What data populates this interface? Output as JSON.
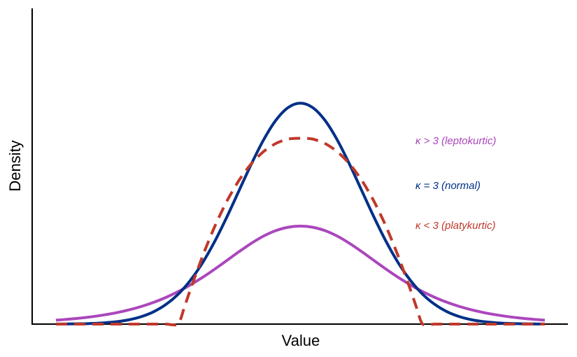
{
  "chart_data": {
    "type": "line",
    "title": "",
    "xlabel": "Value",
    "ylabel": "Density",
    "xlim": [
      -4,
      4
    ],
    "ylim": [
      0,
      0.56
    ],
    "grid": false,
    "legend": "right",
    "series": [
      {
        "name": "κ > 3 (leptokurtic)",
        "color": "#AB47BC",
        "dash": "solid",
        "x": [
          -4.0,
          -3.8,
          -3.6,
          -3.4,
          -3.2,
          -3.0,
          -2.8,
          -2.6,
          -2.4,
          -2.2,
          -2.0,
          -1.8,
          -1.6,
          -1.4,
          -1.2,
          -1.0,
          -0.8,
          -0.6,
          -0.4,
          -0.2,
          0.0,
          0.2,
          0.4,
          0.6,
          0.8,
          1.0,
          1.2,
          1.4,
          1.6,
          1.8,
          2.0,
          2.2,
          2.4,
          2.6,
          2.8,
          3.0,
          3.2,
          3.4,
          3.6,
          3.8,
          4.0
        ],
        "y": [
          0.0071,
          0.0088,
          0.0109,
          0.0135,
          0.0168,
          0.0208,
          0.0258,
          0.0319,
          0.0393,
          0.0482,
          0.0587,
          0.0708,
          0.0844,
          0.0994,
          0.1152,
          0.1311,
          0.1461,
          0.1591,
          0.1689,
          0.1749,
          0.1769,
          0.1749,
          0.1689,
          0.1591,
          0.1461,
          0.1311,
          0.1152,
          0.0994,
          0.0844,
          0.0708,
          0.0587,
          0.0482,
          0.0393,
          0.0319,
          0.0258,
          0.0208,
          0.0168,
          0.0135,
          0.0109,
          0.0088,
          0.0071
        ]
      },
      {
        "name": "κ = 3 (normal)",
        "color": "#003087",
        "dash": "solid",
        "x": [
          -4.0,
          -3.8,
          -3.6,
          -3.4,
          -3.2,
          -3.0,
          -2.8,
          -2.6,
          -2.4,
          -2.2,
          -2.0,
          -1.8,
          -1.6,
          -1.4,
          -1.2,
          -1.0,
          -0.8,
          -0.6,
          -0.4,
          -0.2,
          0.0,
          0.2,
          0.4,
          0.6,
          0.8,
          1.0,
          1.2,
          1.4,
          1.6,
          1.8,
          2.0,
          2.2,
          2.4,
          2.6,
          2.8,
          3.0,
          3.2,
          3.4,
          3.6,
          3.8,
          4.0
        ],
        "y": [
          0.0001,
          0.0003,
          0.0006,
          0.0012,
          0.0024,
          0.0044,
          0.0079,
          0.0136,
          0.0224,
          0.0355,
          0.054,
          0.079,
          0.1109,
          0.1497,
          0.1942,
          0.242,
          0.2897,
          0.3332,
          0.3683,
          0.3911,
          0.399,
          0.3911,
          0.3683,
          0.3332,
          0.2897,
          0.242,
          0.1942,
          0.1497,
          0.1109,
          0.079,
          0.054,
          0.0355,
          0.0224,
          0.0136,
          0.0079,
          0.0044,
          0.0024,
          0.0012,
          0.0006,
          0.0003,
          0.0001
        ]
      },
      {
        "name": "κ < 3 (platykurtic)",
        "color": "#C0392B",
        "dash": "dashed",
        "x": [
          -4.0,
          -3.6,
          -3.2,
          -2.8,
          -2.4,
          -2.2,
          -2.0,
          -1.9,
          -1.8,
          -1.6,
          -1.4,
          -1.2,
          -1.0,
          -0.8,
          -0.6,
          -0.4,
          -0.2,
          0.0,
          0.2,
          0.4,
          0.6,
          0.8,
          1.0,
          1.2,
          1.4,
          1.6,
          1.8,
          1.9,
          2.0,
          2.2,
          2.4,
          2.8,
          3.2,
          3.6,
          4.0
        ],
        "y": [
          0,
          0,
          0,
          0,
          0,
          0,
          0,
          0.03,
          0.0624,
          0.1229,
          0.1768,
          0.2227,
          0.2604,
          0.29,
          0.3118,
          0.3263,
          0.3342,
          0.3357,
          0.3342,
          0.3263,
          0.3118,
          0.29,
          0.2604,
          0.2227,
          0.1768,
          0.1229,
          0.0624,
          0.03,
          0,
          0,
          0,
          0,
          0,
          0,
          0
        ]
      }
    ]
  }
}
